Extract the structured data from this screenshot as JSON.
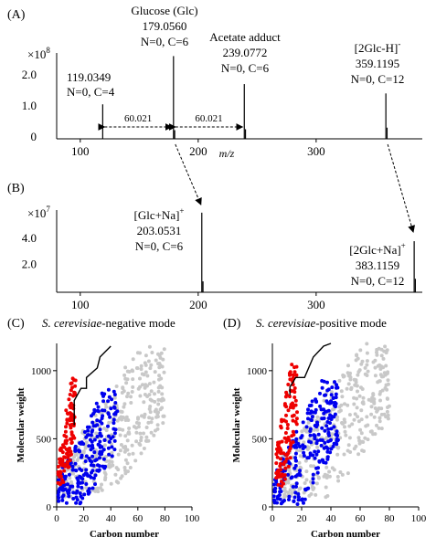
{
  "panels": {
    "A": "(A)",
    "B": "(B)",
    "C": "(C)",
    "D": "(D)"
  },
  "spectrum_A": {
    "multiplier": "×10",
    "exponent": "8",
    "x_ticks": [
      100,
      200,
      300
    ],
    "y_ticks": [
      0,
      1.0,
      2.0
    ],
    "xlabel": "m/z",
    "peaks": [
      {
        "mz": 119.0349,
        "height": 1.05,
        "mass": "119.0349",
        "formula": "N=0, C=4"
      },
      {
        "mz": 179.056,
        "height": 2.6,
        "name": "Glucose (Glc)",
        "mass": "179.0560",
        "formula": "N=0, C=6"
      },
      {
        "mz": 180.06,
        "height": 0.22
      },
      {
        "mz": 239.0772,
        "height": 1.7,
        "name": "Acetate adduct",
        "mass": "239.0772",
        "formula": "N=0, C=6"
      },
      {
        "mz": 240.08,
        "height": 0.25
      },
      {
        "mz": 359.1195,
        "height": 1.4,
        "name": "[2Glc-H]",
        "name_sup": "-",
        "mass": "359.1195",
        "formula": "N=0, C=12"
      },
      {
        "mz": 360.12,
        "height": 0.3
      }
    ],
    "gaps": [
      {
        "from": 119.0349,
        "to": 179.056,
        "label": "60.021"
      },
      {
        "from": 179.056,
        "to": 239.0772,
        "label": "60.021"
      }
    ]
  },
  "spectrum_B": {
    "multiplier": "×10",
    "exponent": "7",
    "x_ticks": [
      100,
      200,
      300
    ],
    "y_ticks": [
      2.0,
      4.0
    ],
    "peaks": [
      {
        "mz": 203.0531,
        "height": 6.0,
        "name": "[Glc+Na]",
        "name_sup": "+",
        "mass": "203.0531",
        "formula": "N=0, C=6"
      },
      {
        "mz": 204.06,
        "height": 0.7
      },
      {
        "mz": 383.1159,
        "height": 3.8,
        "name": "[2Glc+Na]",
        "name_sup": "+",
        "mass": "383.1159",
        "formula": "N=0, C=12"
      },
      {
        "mz": 384.12,
        "height": 0.9
      }
    ]
  },
  "chart_data": [
    {
      "type": "bar",
      "panel": "A",
      "xlabel": "m/z",
      "y_multiplier": "1e8",
      "x": [
        119.0349,
        179.056,
        180.06,
        239.0772,
        240.08,
        359.1195,
        360.12
      ],
      "values": [
        1.05,
        2.6,
        0.22,
        1.7,
        0.25,
        1.4,
        0.3
      ],
      "xlim": [
        80,
        390
      ],
      "ylim": [
        0,
        2.7
      ],
      "annotations": [
        "119.0349",
        "N=0, C=4",
        "Glucose (Glc)",
        "179.0560",
        "N=0, C=6",
        "Acetate adduct",
        "239.0772",
        "N=0, C=6",
        "[2Glc-H]-",
        "359.1195",
        "N=0, C=12",
        "60.021",
        "60.021"
      ]
    },
    {
      "type": "bar",
      "panel": "B",
      "y_multiplier": "1e7",
      "x": [
        203.0531,
        204.06,
        383.1159,
        384.12
      ],
      "values": [
        6.0,
        0.7,
        3.8,
        0.9
      ],
      "xlim": [
        80,
        390
      ],
      "ylim": [
        0,
        6.2
      ],
      "annotations": [
        "[Glc+Na]+",
        "203.0531",
        "N=0, C=6",
        "[2Glc+Na]+",
        "383.1159",
        "N=0, C=12"
      ]
    },
    {
      "type": "scatter",
      "panel": "C",
      "title": "S. cerevisiae-negative mode",
      "title_italic": "S. cerevisiae",
      "title_rest": "-negative mode",
      "xlabel": "Carbon number",
      "ylabel": "Molecular weight",
      "xlim": [
        0,
        100
      ],
      "ylim": [
        0,
        1200
      ],
      "x_ticks": [
        0,
        20,
        40,
        60,
        80,
        100
      ],
      "y_ticks": [
        0,
        500,
        1000
      ],
      "boundary": [
        [
          13,
          600
        ],
        [
          13,
          780
        ],
        [
          18,
          870
        ],
        [
          22,
          870
        ],
        [
          22,
          950
        ],
        [
          30,
          1020
        ],
        [
          32,
          1100
        ],
        [
          40,
          1180
        ]
      ],
      "series": [
        {
          "color": "#c8c8c8",
          "x_range": [
            5,
            80
          ],
          "y_range": [
            70,
            1180
          ],
          "count": 360,
          "seed": 11
        },
        {
          "color": "#0000ee",
          "x_range": [
            1,
            45
          ],
          "y_range": [
            20,
            860
          ],
          "count": 230,
          "seed": 23
        },
        {
          "color": "#ee0000",
          "x_range": [
            1,
            14
          ],
          "y_range": [
            150,
            950
          ],
          "count": 110,
          "seed": 37
        }
      ]
    },
    {
      "type": "scatter",
      "panel": "D",
      "title": "S. cerevisiae-positive mode",
      "title_italic": "S. cerevisiae",
      "title_rest": "-positive mode",
      "xlabel": "Carbon number",
      "ylabel": "Molecular weight",
      "xlim": [
        0,
        100
      ],
      "ylim": [
        0,
        1200
      ],
      "x_ticks": [
        0,
        20,
        40,
        60,
        80,
        100
      ],
      "y_ticks": [
        0,
        500,
        1000
      ],
      "boundary": [
        [
          12,
          820
        ],
        [
          12,
          880
        ],
        [
          16,
          950
        ],
        [
          22,
          950
        ],
        [
          28,
          1100
        ],
        [
          35,
          1180
        ],
        [
          40,
          1200
        ]
      ],
      "series": [
        {
          "color": "#c8c8c8",
          "x_range": [
            5,
            80
          ],
          "y_range": [
            70,
            1200
          ],
          "count": 380,
          "seed": 51
        },
        {
          "color": "#0000ee",
          "x_range": [
            1,
            45
          ],
          "y_range": [
            20,
            930
          ],
          "count": 240,
          "seed": 63
        },
        {
          "color": "#ee0000",
          "x_range": [
            2,
            17
          ],
          "y_range": [
            150,
            1080
          ],
          "count": 120,
          "seed": 77
        }
      ]
    }
  ]
}
